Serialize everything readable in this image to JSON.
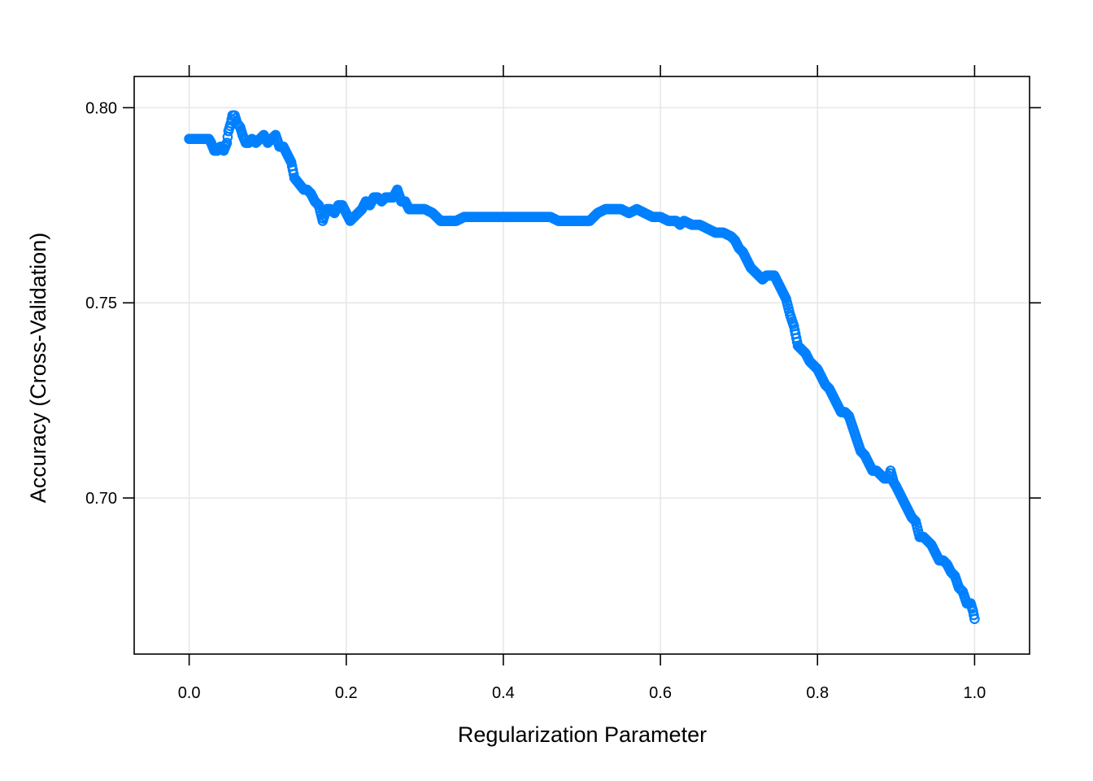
{
  "chart_data": {
    "type": "scatter",
    "title": "",
    "xlabel": "Regularization Parameter",
    "ylabel": "Accuracy (Cross-Validation)",
    "xlim": [
      -0.07,
      1.07
    ],
    "ylim": [
      0.66,
      0.808
    ],
    "x_ticks": [
      0.0,
      0.2,
      0.4,
      0.6,
      0.8,
      1.0
    ],
    "x_tick_labels": [
      "0.0",
      "0.2",
      "0.4",
      "0.6",
      "0.8",
      "1.0"
    ],
    "y_ticks": [
      0.7,
      0.75,
      0.8
    ],
    "y_tick_labels": [
      "0.70",
      "0.75",
      "0.80"
    ],
    "grid": true,
    "marker": "open-circle",
    "point_color": "#0080ff",
    "series": [
      {
        "points": [
          [
            0.0,
            0.792
          ],
          [
            0.005,
            0.792
          ],
          [
            0.01,
            0.792
          ],
          [
            0.015,
            0.792
          ],
          [
            0.02,
            0.792
          ],
          [
            0.025,
            0.792
          ],
          [
            0.028,
            0.791
          ],
          [
            0.032,
            0.789
          ],
          [
            0.036,
            0.789
          ],
          [
            0.04,
            0.79
          ],
          [
            0.044,
            0.789
          ],
          [
            0.048,
            0.791
          ],
          [
            0.05,
            0.794
          ],
          [
            0.053,
            0.796
          ],
          [
            0.055,
            0.798
          ],
          [
            0.058,
            0.798
          ],
          [
            0.061,
            0.796
          ],
          [
            0.065,
            0.795
          ],
          [
            0.068,
            0.793
          ],
          [
            0.072,
            0.791
          ],
          [
            0.076,
            0.791
          ],
          [
            0.08,
            0.792
          ],
          [
            0.085,
            0.791
          ],
          [
            0.09,
            0.792
          ],
          [
            0.095,
            0.793
          ],
          [
            0.1,
            0.791
          ],
          [
            0.105,
            0.792
          ],
          [
            0.11,
            0.793
          ],
          [
            0.115,
            0.79
          ],
          [
            0.12,
            0.79
          ],
          [
            0.125,
            0.788
          ],
          [
            0.13,
            0.786
          ],
          [
            0.134,
            0.782
          ],
          [
            0.138,
            0.781
          ],
          [
            0.142,
            0.78
          ],
          [
            0.146,
            0.779
          ],
          [
            0.15,
            0.779
          ],
          [
            0.155,
            0.778
          ],
          [
            0.16,
            0.776
          ],
          [
            0.165,
            0.775
          ],
          [
            0.17,
            0.771
          ],
          [
            0.175,
            0.774
          ],
          [
            0.18,
            0.774
          ],
          [
            0.185,
            0.773
          ],
          [
            0.19,
            0.775
          ],
          [
            0.195,
            0.775
          ],
          [
            0.2,
            0.773
          ],
          [
            0.205,
            0.771
          ],
          [
            0.21,
            0.772
          ],
          [
            0.215,
            0.773
          ],
          [
            0.22,
            0.774
          ],
          [
            0.225,
            0.776
          ],
          [
            0.23,
            0.775
          ],
          [
            0.235,
            0.777
          ],
          [
            0.24,
            0.777
          ],
          [
            0.245,
            0.776
          ],
          [
            0.25,
            0.777
          ],
          [
            0.255,
            0.777
          ],
          [
            0.26,
            0.777
          ],
          [
            0.265,
            0.779
          ],
          [
            0.27,
            0.776
          ],
          [
            0.275,
            0.776
          ],
          [
            0.28,
            0.774
          ],
          [
            0.29,
            0.774
          ],
          [
            0.3,
            0.774
          ],
          [
            0.31,
            0.773
          ],
          [
            0.32,
            0.771
          ],
          [
            0.33,
            0.771
          ],
          [
            0.34,
            0.771
          ],
          [
            0.35,
            0.772
          ],
          [
            0.36,
            0.772
          ],
          [
            0.38,
            0.772
          ],
          [
            0.4,
            0.772
          ],
          [
            0.42,
            0.772
          ],
          [
            0.44,
            0.772
          ],
          [
            0.46,
            0.772
          ],
          [
            0.47,
            0.771
          ],
          [
            0.48,
            0.771
          ],
          [
            0.49,
            0.771
          ],
          [
            0.5,
            0.771
          ],
          [
            0.51,
            0.771
          ],
          [
            0.52,
            0.773
          ],
          [
            0.53,
            0.774
          ],
          [
            0.54,
            0.774
          ],
          [
            0.55,
            0.774
          ],
          [
            0.56,
            0.773
          ],
          [
            0.57,
            0.774
          ],
          [
            0.58,
            0.773
          ],
          [
            0.59,
            0.772
          ],
          [
            0.6,
            0.772
          ],
          [
            0.61,
            0.771
          ],
          [
            0.62,
            0.771
          ],
          [
            0.625,
            0.77
          ],
          [
            0.63,
            0.771
          ],
          [
            0.64,
            0.77
          ],
          [
            0.65,
            0.77
          ],
          [
            0.66,
            0.769
          ],
          [
            0.67,
            0.768
          ],
          [
            0.68,
            0.768
          ],
          [
            0.69,
            0.767
          ],
          [
            0.695,
            0.766
          ],
          [
            0.7,
            0.764
          ],
          [
            0.705,
            0.763
          ],
          [
            0.71,
            0.761
          ],
          [
            0.715,
            0.759
          ],
          [
            0.72,
            0.758
          ],
          [
            0.725,
            0.757
          ],
          [
            0.73,
            0.756
          ],
          [
            0.735,
            0.757
          ],
          [
            0.74,
            0.757
          ],
          [
            0.745,
            0.757
          ],
          [
            0.75,
            0.755
          ],
          [
            0.755,
            0.753
          ],
          [
            0.76,
            0.751
          ],
          [
            0.765,
            0.747
          ],
          [
            0.77,
            0.744
          ],
          [
            0.775,
            0.739
          ],
          [
            0.78,
            0.738
          ],
          [
            0.785,
            0.737
          ],
          [
            0.79,
            0.735
          ],
          [
            0.795,
            0.734
          ],
          [
            0.8,
            0.733
          ],
          [
            0.805,
            0.731
          ],
          [
            0.81,
            0.729
          ],
          [
            0.815,
            0.728
          ],
          [
            0.82,
            0.726
          ],
          [
            0.825,
            0.724
          ],
          [
            0.83,
            0.722
          ],
          [
            0.835,
            0.722
          ],
          [
            0.84,
            0.721
          ],
          [
            0.845,
            0.718
          ],
          [
            0.85,
            0.715
          ],
          [
            0.855,
            0.712
          ],
          [
            0.86,
            0.711
          ],
          [
            0.865,
            0.709
          ],
          [
            0.87,
            0.707
          ],
          [
            0.875,
            0.707
          ],
          [
            0.88,
            0.706
          ],
          [
            0.885,
            0.705
          ],
          [
            0.89,
            0.705
          ],
          [
            0.893,
            0.707
          ],
          [
            0.897,
            0.704
          ],
          [
            0.9,
            0.703
          ],
          [
            0.905,
            0.701
          ],
          [
            0.91,
            0.699
          ],
          [
            0.915,
            0.697
          ],
          [
            0.92,
            0.695
          ],
          [
            0.925,
            0.694
          ],
          [
            0.93,
            0.69
          ],
          [
            0.935,
            0.69
          ],
          [
            0.94,
            0.689
          ],
          [
            0.945,
            0.688
          ],
          [
            0.95,
            0.686
          ],
          [
            0.955,
            0.684
          ],
          [
            0.96,
            0.684
          ],
          [
            0.965,
            0.683
          ],
          [
            0.97,
            0.681
          ],
          [
            0.975,
            0.68
          ],
          [
            0.98,
            0.677
          ],
          [
            0.985,
            0.676
          ],
          [
            0.99,
            0.673
          ],
          [
            0.995,
            0.673
          ],
          [
            0.998,
            0.671
          ],
          [
            1.0,
            0.669
          ]
        ]
      }
    ]
  }
}
